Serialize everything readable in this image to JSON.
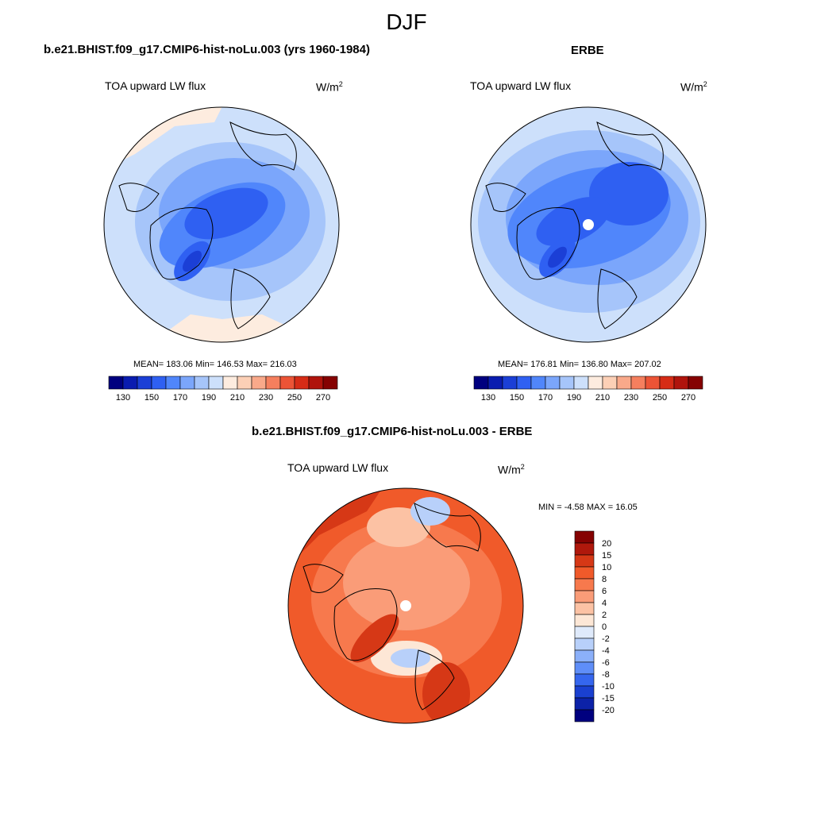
{
  "season": "DJF",
  "panels": [
    {
      "title": "b.e21.BHIST.f09_g17.CMIP6-hist-noLu.003 (yrs 1960-1984)",
      "variable": "TOA upward LW flux",
      "units_base": "W/m",
      "units_exp": "2",
      "stats": "MEAN= 183.06  Min= 146.53  Max= 216.03",
      "mean": 183.06,
      "min": 146.53,
      "max": 216.03
    },
    {
      "title": "ERBE",
      "variable": "TOA upward LW flux",
      "units_base": "W/m",
      "units_exp": "2",
      "stats": "MEAN= 176.81  Min= 136.80  Max= 207.02",
      "mean": 176.81,
      "min": 136.8,
      "max": 207.02
    },
    {
      "title": "b.e21.BHIST.f09_g17.CMIP6-hist-noLu.003 - ERBE",
      "variable": "TOA upward LW flux",
      "units_base": "W/m",
      "units_exp": "2",
      "stats": "MIN =  -4.58 MAX =  16.05",
      "min": -4.58,
      "max": 16.05
    }
  ],
  "colorbar_abs": {
    "labels": [
      "130",
      "150",
      "170",
      "190",
      "210",
      "230",
      "250",
      "270"
    ],
    "colors": [
      "#00007f",
      "#0a1cb0",
      "#1b3fd6",
      "#2f60f2",
      "#5086fb",
      "#7ba6fb",
      "#a6c5fa",
      "#cde0fb",
      "#fdecdf",
      "#fcd0b6",
      "#f9a98a",
      "#f57f5e",
      "#ec5436",
      "#d62c16",
      "#b0140c",
      "#850202"
    ]
  },
  "colorbar_diff": {
    "labels": [
      "20",
      "15",
      "10",
      "8",
      "6",
      "4",
      "2",
      "0",
      "-2",
      "-4",
      "-6",
      "-8",
      "-10",
      "-15",
      "-20"
    ],
    "colors": [
      "#850202",
      "#b0180c",
      "#d63816",
      "#f05a2a",
      "#f7794d",
      "#fa9c78",
      "#fcc2a4",
      "#fde7d6",
      "#dfeafb",
      "#b8d0fa",
      "#8bb0fa",
      "#5f8ef8",
      "#3566ee",
      "#1a40d0",
      "#0c22a8",
      "#00007f"
    ]
  }
}
